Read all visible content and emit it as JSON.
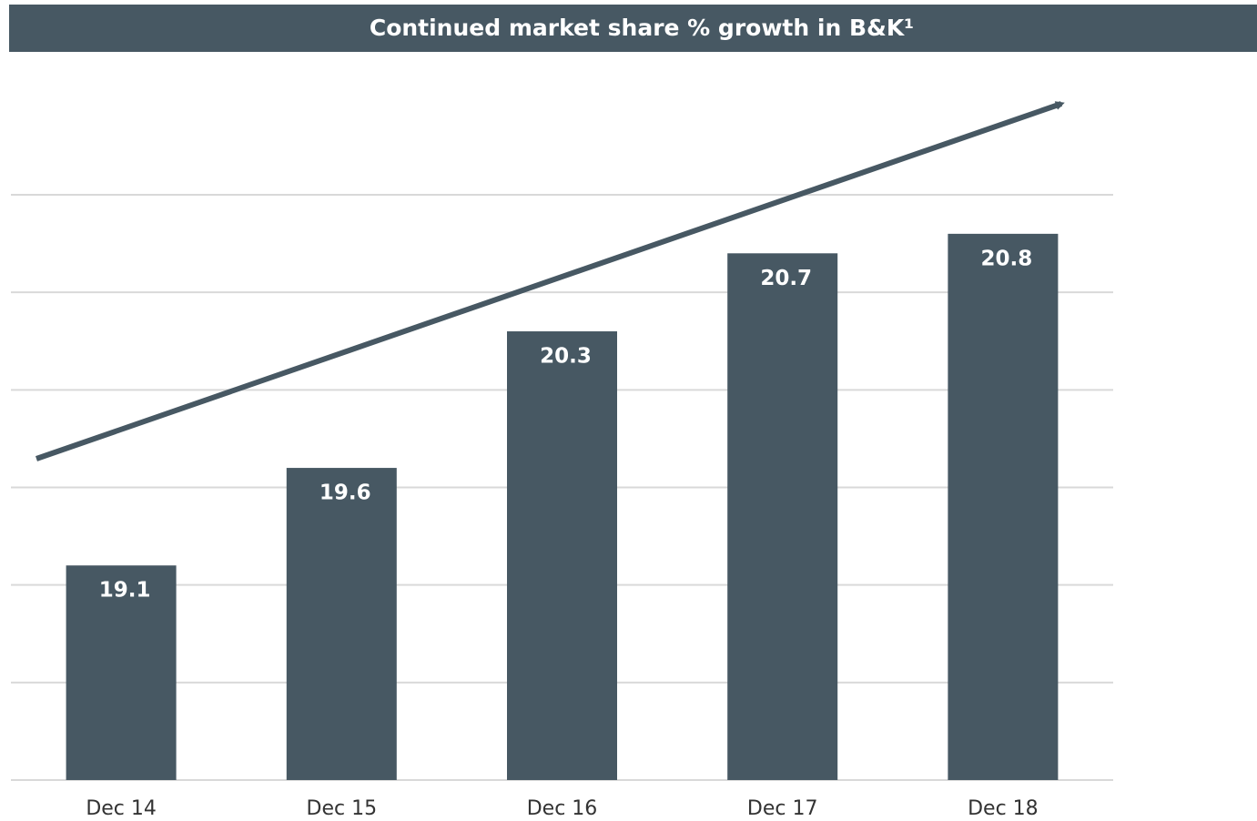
{
  "chart_data": {
    "type": "bar",
    "title": "Continued market share % growth in B&K¹",
    "categories": [
      "Dec 14",
      "Dec 15",
      "Dec 16",
      "Dec 17",
      "Dec 18"
    ],
    "values": [
      19.1,
      19.6,
      20.3,
      20.7,
      20.8
    ],
    "color": "#475863",
    "ylim": [
      18,
      21
    ],
    "yticks": [
      18,
      18.5,
      19,
      19.5,
      20,
      20.5,
      21
    ],
    "grid": true
  }
}
